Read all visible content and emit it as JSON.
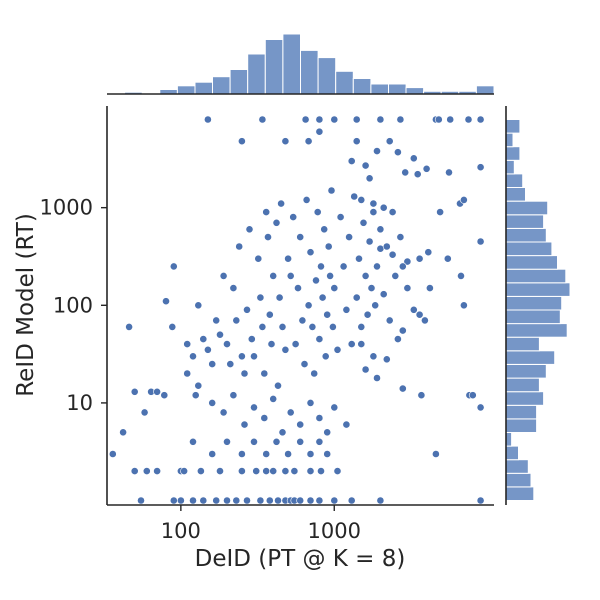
{
  "chart_data": {
    "type": "scatter",
    "subtype": "joint-plot with marginal histograms",
    "xlabel": "DeID (PT @ K = 8)",
    "ylabel": "ReID Model (RT)",
    "x_scale": "log",
    "y_scale": "log",
    "xlim": [
      33,
      11000
    ],
    "ylim": [
      0.9,
      11000
    ],
    "x_ticks": [
      {
        "value": 100,
        "label": "100"
      },
      {
        "value": 1000,
        "label": "1000"
      }
    ],
    "y_ticks": [
      {
        "value": 10,
        "label": "10"
      },
      {
        "value": 100,
        "label": "100"
      },
      {
        "value": 1000,
        "label": "1000"
      }
    ],
    "grid": false,
    "colors": {
      "points": "#4c72b0",
      "histogram": "#7696c7",
      "axes": "#262626"
    },
    "points": [
      [
        150,
        8000
      ],
      [
        340,
        8000
      ],
      [
        650,
        8000
      ],
      [
        800,
        8000
      ],
      [
        1000,
        8000
      ],
      [
        1400,
        8000
      ],
      [
        2000,
        8000
      ],
      [
        2700,
        8000
      ],
      [
        4600,
        8000
      ],
      [
        4800,
        8000
      ],
      [
        5700,
        8000
      ],
      [
        7500,
        8000
      ],
      [
        9000,
        8000
      ],
      [
        800,
        6000
      ],
      [
        250,
        4800
      ],
      [
        480,
        4800
      ],
      [
        680,
        4800
      ],
      [
        1400,
        4800
      ],
      [
        2300,
        4800
      ],
      [
        2600,
        3700
      ],
      [
        3300,
        3200
      ],
      [
        1300,
        3000
      ],
      [
        1600,
        2700
      ],
      [
        1700,
        2000
      ],
      [
        1900,
        3800
      ],
      [
        2900,
        2300
      ],
      [
        3500,
        2200
      ],
      [
        4000,
        2500
      ],
      [
        5600,
        2300
      ],
      [
        9000,
        2600
      ],
      [
        6600,
        1100
      ],
      [
        7000,
        1200
      ],
      [
        4900,
        900
      ],
      [
        2400,
        900
      ],
      [
        2100,
        1000
      ],
      [
        1800,
        1100
      ],
      [
        1500,
        1200
      ],
      [
        9000,
        450
      ],
      [
        5500,
        300
      ],
      [
        4100,
        350
      ],
      [
        3600,
        300
      ],
      [
        3000,
        280
      ],
      [
        2800,
        250
      ],
      [
        2400,
        330
      ],
      [
        2000,
        380
      ],
      [
        6700,
        200
      ],
      [
        7000,
        100
      ],
      [
        3900,
        70
      ],
      [
        2800,
        55
      ],
      [
        2600,
        45
      ],
      [
        2200,
        28
      ],
      [
        1800,
        30
      ],
      [
        1500,
        40
      ],
      [
        3700,
        12
      ],
      [
        2800,
        14
      ],
      [
        1900,
        18
      ],
      [
        1600,
        22
      ],
      [
        7600,
        12
      ],
      [
        8000,
        12
      ],
      [
        9000,
        9
      ],
      [
        4600,
        3
      ],
      [
        36,
        3
      ],
      [
        42,
        5
      ],
      [
        46,
        60
      ],
      [
        50,
        13
      ],
      [
        58,
        8
      ],
      [
        64,
        13
      ],
      [
        70,
        13
      ],
      [
        78,
        12
      ],
      [
        80,
        110
      ],
      [
        88,
        60
      ],
      [
        90,
        250
      ],
      [
        110,
        40
      ],
      [
        120,
        30
      ],
      [
        125,
        12
      ],
      [
        130,
        100
      ],
      [
        140,
        45
      ],
      [
        150,
        35
      ],
      [
        160,
        25
      ],
      [
        170,
        70
      ],
      [
        180,
        50
      ],
      [
        190,
        200
      ],
      [
        200,
        40
      ],
      [
        210,
        25
      ],
      [
        220,
        150
      ],
      [
        230,
        70
      ],
      [
        240,
        400
      ],
      [
        250,
        30
      ],
      [
        260,
        20
      ],
      [
        270,
        90
      ],
      [
        280,
        600
      ],
      [
        290,
        45
      ],
      [
        300,
        30
      ],
      [
        320,
        300
      ],
      [
        330,
        120
      ],
      [
        340,
        60
      ],
      [
        350,
        20
      ],
      [
        360,
        900
      ],
      [
        370,
        500
      ],
      [
        380,
        80
      ],
      [
        390,
        40
      ],
      [
        400,
        200
      ],
      [
        420,
        700
      ],
      [
        430,
        15
      ],
      [
        440,
        120
      ],
      [
        450,
        1100
      ],
      [
        460,
        60
      ],
      [
        480,
        35
      ],
      [
        500,
        300
      ],
      [
        520,
        200
      ],
      [
        540,
        800
      ],
      [
        560,
        40
      ],
      [
        580,
        150
      ],
      [
        600,
        500
      ],
      [
        620,
        70
      ],
      [
        640,
        25
      ],
      [
        660,
        1200
      ],
      [
        680,
        100
      ],
      [
        700,
        350
      ],
      [
        720,
        60
      ],
      [
        740,
        20
      ],
      [
        760,
        180
      ],
      [
        780,
        900
      ],
      [
        800,
        45
      ],
      [
        820,
        250
      ],
      [
        840,
        120
      ],
      [
        860,
        600
      ],
      [
        880,
        30
      ],
      [
        900,
        80
      ],
      [
        920,
        400
      ],
      [
        940,
        200
      ],
      [
        960,
        1500
      ],
      [
        980,
        60
      ],
      [
        1000,
        150
      ],
      [
        1050,
        35
      ],
      [
        1100,
        800
      ],
      [
        1150,
        250
      ],
      [
        1200,
        90
      ],
      [
        1250,
        500
      ],
      [
        1300,
        40
      ],
      [
        1350,
        1300
      ],
      [
        1400,
        120
      ],
      [
        1450,
        300
      ],
      [
        1500,
        60
      ],
      [
        1550,
        700
      ],
      [
        1600,
        200
      ],
      [
        1650,
        80
      ],
      [
        1700,
        450
      ],
      [
        1750,
        150
      ],
      [
        1800,
        900
      ],
      [
        1850,
        100
      ],
      [
        1900,
        250
      ],
      [
        2000,
        600
      ],
      [
        2100,
        130
      ],
      [
        2200,
        400
      ],
      [
        2300,
        70
      ],
      [
        2500,
        200
      ],
      [
        2700,
        500
      ],
      [
        3000,
        150
      ],
      [
        3300,
        90
      ],
      [
        3600,
        80
      ],
      [
        4200,
        150
      ],
      [
        110,
        20
      ],
      [
        130,
        15
      ],
      [
        160,
        10
      ],
      [
        190,
        8
      ],
      [
        220,
        12
      ],
      [
        260,
        6
      ],
      [
        300,
        9
      ],
      [
        350,
        7
      ],
      [
        400,
        11
      ],
      [
        460,
        5
      ],
      [
        520,
        8
      ],
      [
        600,
        6
      ],
      [
        700,
        10
      ],
      [
        800,
        7
      ],
      [
        900,
        5
      ],
      [
        1000,
        9
      ],
      [
        1200,
        6
      ],
      [
        120,
        4
      ],
      [
        160,
        3
      ],
      [
        200,
        4
      ],
      [
        250,
        3
      ],
      [
        300,
        4
      ],
      [
        360,
        3
      ],
      [
        420,
        4
      ],
      [
        500,
        3
      ],
      [
        600,
        4
      ],
      [
        700,
        3
      ],
      [
        800,
        4
      ],
      [
        900,
        3
      ],
      [
        50,
        2
      ],
      [
        60,
        2
      ],
      [
        70,
        2
      ],
      [
        100,
        2
      ],
      [
        105,
        2
      ],
      [
        135,
        2
      ],
      [
        180,
        2
      ],
      [
        250,
        2
      ],
      [
        310,
        2
      ],
      [
        360,
        2
      ],
      [
        400,
        2
      ],
      [
        480,
        2
      ],
      [
        550,
        2
      ],
      [
        700,
        2
      ],
      [
        820,
        2
      ],
      [
        1050,
        2
      ],
      [
        55,
        1
      ],
      [
        90,
        1
      ],
      [
        100,
        1
      ],
      [
        120,
        1
      ],
      [
        140,
        1
      ],
      [
        170,
        1
      ],
      [
        200,
        1
      ],
      [
        230,
        1
      ],
      [
        270,
        1
      ],
      [
        330,
        1
      ],
      [
        380,
        1
      ],
      [
        430,
        1
      ],
      [
        480,
        1
      ],
      [
        520,
        1
      ],
      [
        550,
        1
      ],
      [
        600,
        1
      ],
      [
        700,
        1
      ],
      [
        800,
        1
      ],
      [
        1000,
        1
      ],
      [
        1300,
        1
      ],
      [
        2000,
        1
      ],
      [
        9000,
        1
      ]
    ],
    "marginal_x_histogram": {
      "bin_range": [
        33,
        11000
      ],
      "counts": [
        1,
        2,
        0,
        5,
        9,
        13,
        19,
        27,
        44,
        60,
        66,
        48,
        40,
        25,
        17,
        11,
        11,
        7,
        3,
        3,
        3,
        9
      ]
    },
    "marginal_y_histogram": {
      "bin_range": [
        1,
        8000
      ],
      "counts_bottom_to_top": [
        20,
        18,
        16,
        9,
        4,
        22,
        22,
        27,
        24,
        29,
        35,
        24,
        44,
        39,
        40,
        46,
        43,
        37,
        33,
        29,
        27,
        30,
        14,
        12,
        6,
        10,
        5,
        10
      ]
    }
  }
}
